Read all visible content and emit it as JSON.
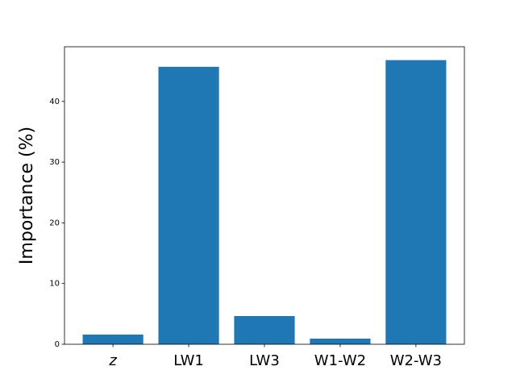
{
  "chart_data": {
    "type": "bar",
    "ylabel": "Importance (%)",
    "categories": [
      "z",
      "LW1",
      "LW3",
      "W1-W2",
      "W2-W3"
    ],
    "values": [
      1.6,
      45.7,
      4.65,
      0.93,
      46.8
    ],
    "color": "#1f77b4",
    "ylim": [
      0,
      49
    ],
    "yticks": [
      0,
      10,
      20,
      30,
      40
    ],
    "grid": false
  }
}
